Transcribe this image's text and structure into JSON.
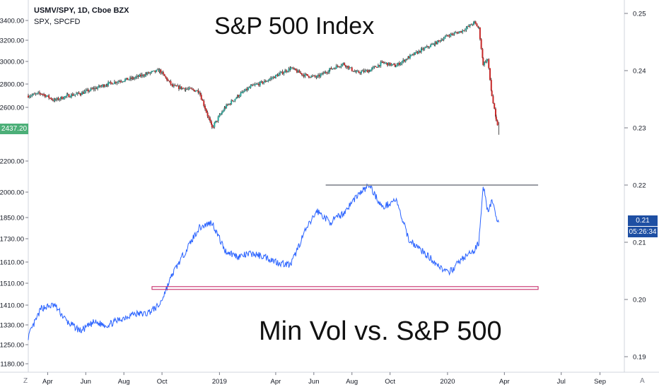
{
  "legend": {
    "symbol_line": "USMV/SPY, 1D, Cboe BZX",
    "overlay_line": "SPX, SPCFD"
  },
  "annotations": {
    "top_title": "S&P 500 Index",
    "bottom_title": "Min Vol vs. S&P 500"
  },
  "price_tags": {
    "left_last": "2437.20",
    "right_last": "0.21",
    "right_timer": "05:26:34"
  },
  "corner_buttons": {
    "left": "Z",
    "right": "A"
  },
  "colors": {
    "up_candle": "#26a69a",
    "down_candle": "#c62828",
    "ratio_line": "#2962ff",
    "resistance_line": "#787b86",
    "support_box": "#c2185b",
    "left_tag_bg": "#4caf78",
    "right_tag_bg": "#1e4fa3",
    "axis_text": "#131722"
  },
  "chart_data": [
    {
      "type": "candlestick",
      "name": "SPX, SPCFD",
      "left_axis_ticks": [
        3400,
        3200,
        3000,
        2800,
        2600,
        2400,
        2200,
        2000,
        1850,
        1730,
        1610,
        1510,
        1410,
        1330,
        1250,
        1180
      ],
      "left_axis_labels": [
        "3400.00",
        "3200.00",
        "3000.00",
        "2800.00",
        "2600.00",
        "2400.00",
        "2200.00",
        "2000.00",
        "1850.00",
        "1730.00",
        "1610.00",
        "1510.00",
        "1410.00",
        "1330.00",
        "1250.00",
        "1180.00"
      ],
      "x_labels": [
        "Apr",
        "Jun",
        "Aug",
        "Oct",
        "2019",
        "Apr",
        "Jun",
        "Aug",
        "Oct",
        "2020",
        "Apr",
        "Jul",
        "Sep"
      ],
      "x": [
        "2018-03-01",
        "2018-03-22",
        "2018-04-12",
        "2018-05-03",
        "2018-05-24",
        "2018-06-14",
        "2018-07-05",
        "2018-07-26",
        "2018-08-16",
        "2018-09-06",
        "2018-09-27",
        "2018-10-18",
        "2018-11-08",
        "2018-11-29",
        "2018-12-20",
        "2019-01-10",
        "2019-01-31",
        "2019-02-21",
        "2019-03-14",
        "2019-04-04",
        "2019-04-25",
        "2019-05-16",
        "2019-06-06",
        "2019-06-27",
        "2019-07-18",
        "2019-08-08",
        "2019-08-29",
        "2019-09-19",
        "2019-10-10",
        "2019-10-31",
        "2019-11-21",
        "2019-12-12",
        "2020-01-02",
        "2020-01-23",
        "2020-02-13",
        "2020-02-20",
        "2020-02-27",
        "2020-03-05",
        "2020-03-12",
        "2020-03-19",
        "2020-03-23"
      ],
      "values": [
        2700,
        2720,
        2660,
        2700,
        2720,
        2760,
        2800,
        2830,
        2850,
        2890,
        2920,
        2780,
        2760,
        2740,
        2430,
        2600,
        2700,
        2780,
        2820,
        2880,
        2940,
        2880,
        2860,
        2930,
        2980,
        2900,
        2920,
        2990,
        2960,
        3040,
        3110,
        3170,
        3250,
        3290,
        3380,
        3320,
        2980,
        3020,
        2700,
        2480,
        2437.2
      ]
    },
    {
      "type": "line",
      "name": "USMV/SPY, 1D, Cboe BZX",
      "right_axis_ticks": [
        0.25,
        0.24,
        0.23,
        0.22,
        0.21,
        0.2,
        0.19
      ],
      "right_axis_labels": [
        "0.25",
        "0.24",
        "0.23",
        "0.22",
        "0.21",
        "0.20",
        "0.19"
      ],
      "x": [
        "2018-03-01",
        "2018-03-22",
        "2018-04-12",
        "2018-05-03",
        "2018-05-24",
        "2018-06-14",
        "2018-07-05",
        "2018-07-26",
        "2018-08-16",
        "2018-09-06",
        "2018-09-27",
        "2018-10-18",
        "2018-11-08",
        "2018-11-29",
        "2018-12-20",
        "2019-01-10",
        "2019-01-31",
        "2019-02-21",
        "2019-03-14",
        "2019-04-04",
        "2019-04-25",
        "2019-05-16",
        "2019-06-06",
        "2019-06-27",
        "2019-07-18",
        "2019-08-08",
        "2019-08-29",
        "2019-09-19",
        "2019-10-10",
        "2019-10-31",
        "2019-11-21",
        "2019-12-12",
        "2020-01-02",
        "2020-01-23",
        "2020-02-13",
        "2020-02-20",
        "2020-02-27",
        "2020-03-05",
        "2020-03-12",
        "2020-03-19",
        "2020-03-23"
      ],
      "values": [
        0.1935,
        0.1985,
        0.199,
        0.196,
        0.1945,
        0.196,
        0.1955,
        0.1965,
        0.1975,
        0.1975,
        0.199,
        0.2045,
        0.2085,
        0.2125,
        0.2135,
        0.2085,
        0.2075,
        0.208,
        0.2075,
        0.2065,
        0.206,
        0.2115,
        0.2155,
        0.2135,
        0.215,
        0.218,
        0.22,
        0.216,
        0.2175,
        0.2105,
        0.2085,
        0.2065,
        0.2045,
        0.207,
        0.2085,
        0.21,
        0.22,
        0.2155,
        0.217,
        0.2145,
        0.2135
      ]
    }
  ],
  "horizontal_lines": [
    {
      "name": "resistance",
      "value": 0.22,
      "x_start": "2019-06-20",
      "x_end": "2020-05-25"
    },
    {
      "name": "support",
      "value": 0.202,
      "x_start": "2018-09-15",
      "x_end": "2020-05-25"
    }
  ]
}
